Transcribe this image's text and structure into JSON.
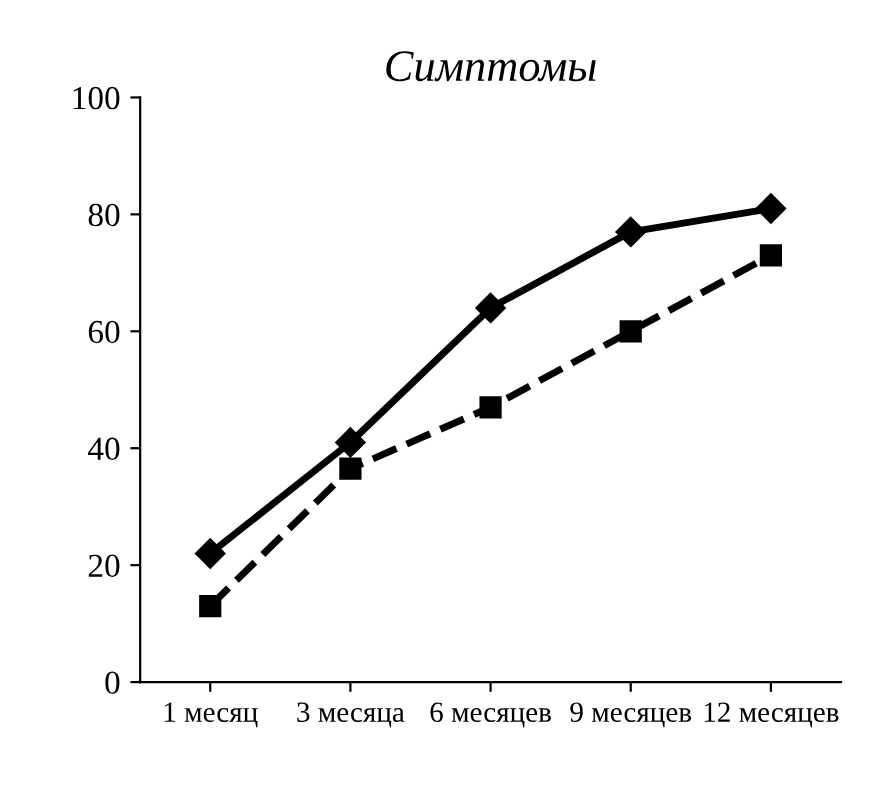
{
  "chart_data": {
    "type": "line",
    "title": "Симптомы",
    "categories": [
      "1 месяц",
      "3 месяца",
      "6 месяцев",
      "9 месяцев",
      "12 месяцев"
    ],
    "series": [
      {
        "color": "#000000",
        "values": [
          22,
          41,
          64,
          77,
          81
        ],
        "marker": "diamond",
        "line_style": "solid"
      },
      {
        "color": "#000000",
        "values": [
          13,
          36.5,
          47,
          60,
          73
        ],
        "marker": "square",
        "line_style": "dashed"
      }
    ],
    "ylim": [
      0,
      100
    ],
    "yticks": [
      0,
      20,
      40,
      60,
      80,
      100
    ],
    "grid": false,
    "legend": false
  }
}
